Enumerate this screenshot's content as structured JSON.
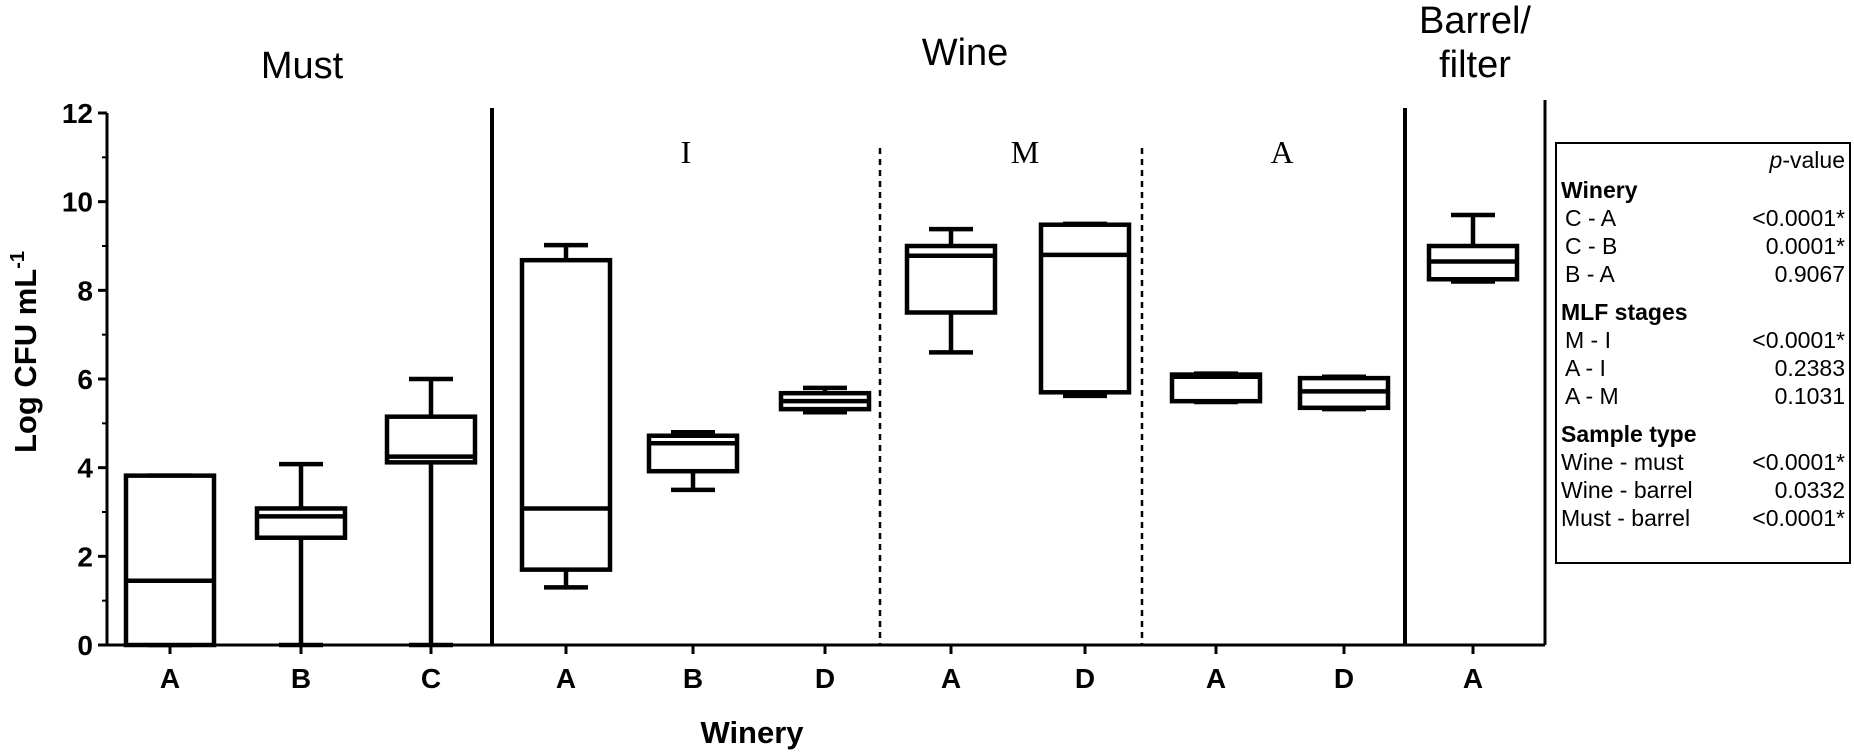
{
  "chart_data": {
    "type": "box",
    "ylabel": "Log CFU mL",
    "ylabel_sup": "-1",
    "xlabel": "Winery",
    "ylim": [
      0,
      12
    ],
    "yticks": [
      0,
      2,
      4,
      6,
      8,
      10,
      12
    ],
    "sections": [
      {
        "key": "must",
        "label": "Must"
      },
      {
        "key": "wine",
        "label": "Wine"
      },
      {
        "key": "barrel",
        "label": "Barrel/",
        "label2": "filter"
      }
    ],
    "stages": [
      "I",
      "M",
      "A"
    ],
    "boxes": [
      {
        "section": "must",
        "stage": "",
        "category": "A",
        "min": 0,
        "q1": 0,
        "median": 1.45,
        "q3": 3.82,
        "max": 3.82
      },
      {
        "section": "must",
        "stage": "",
        "category": "B",
        "min": 0,
        "q1": 2.42,
        "median": 2.9,
        "q3": 3.08,
        "max": 4.08
      },
      {
        "section": "must",
        "stage": "",
        "category": "C",
        "min": 0,
        "q1": 4.12,
        "median": 4.25,
        "q3": 5.15,
        "max": 6.0
      },
      {
        "section": "wine",
        "stage": "I",
        "category": "A",
        "min": 1.3,
        "q1": 1.7,
        "median": 3.08,
        "q3": 8.68,
        "max": 9.02
      },
      {
        "section": "wine",
        "stage": "I",
        "category": "B",
        "min": 3.5,
        "q1": 3.92,
        "median": 4.55,
        "q3": 4.72,
        "max": 4.8
      },
      {
        "section": "wine",
        "stage": "I",
        "category": "D",
        "min": 5.25,
        "q1": 5.32,
        "median": 5.5,
        "q3": 5.68,
        "max": 5.8
      },
      {
        "section": "wine",
        "stage": "M",
        "category": "A",
        "min": 6.6,
        "q1": 7.5,
        "median": 8.78,
        "q3": 9.0,
        "max": 9.38
      },
      {
        "section": "wine",
        "stage": "M",
        "category": "D",
        "min": 5.62,
        "q1": 5.7,
        "median": 8.8,
        "q3": 9.48,
        "max": 9.5
      },
      {
        "section": "wine",
        "stage": "A",
        "category": "A",
        "min": 5.48,
        "q1": 5.5,
        "median": 6.05,
        "q3": 6.1,
        "max": 6.12
      },
      {
        "section": "wine",
        "stage": "A",
        "category": "D",
        "min": 5.32,
        "q1": 5.35,
        "median": 5.72,
        "q3": 6.02,
        "max": 6.05
      },
      {
        "section": "barrel",
        "stage": "",
        "category": "A",
        "min": 8.2,
        "q1": 8.25,
        "median": 8.65,
        "q3": 9.0,
        "max": 9.7
      }
    ],
    "grid": false,
    "legend": "none"
  },
  "pvalue_table": {
    "header": "p-value",
    "header_italic": "p",
    "header_rest": "-value",
    "groups": [
      {
        "title": "Winery",
        "rows": [
          {
            "label": "C - A",
            "value": "<0.0001*"
          },
          {
            "label": "C - B",
            "value": "0.0001*"
          },
          {
            "label": "B - A",
            "value": "0.9067"
          }
        ]
      },
      {
        "title": "MLF stages",
        "rows": [
          {
            "label": "M - I",
            "value": "<0.0001*"
          },
          {
            "label": "A - I",
            "value": "0.2383"
          },
          {
            "label": "A - M",
            "value": "0.1031"
          }
        ]
      },
      {
        "title": "Sample type",
        "rows": [
          {
            "label": "Wine - must",
            "value": "<0.0001*"
          },
          {
            "label": "Wine - barrel",
            "value": "0.0332"
          },
          {
            "label": "Must - barrel",
            "value": "<0.0001*"
          }
        ]
      }
    ]
  }
}
